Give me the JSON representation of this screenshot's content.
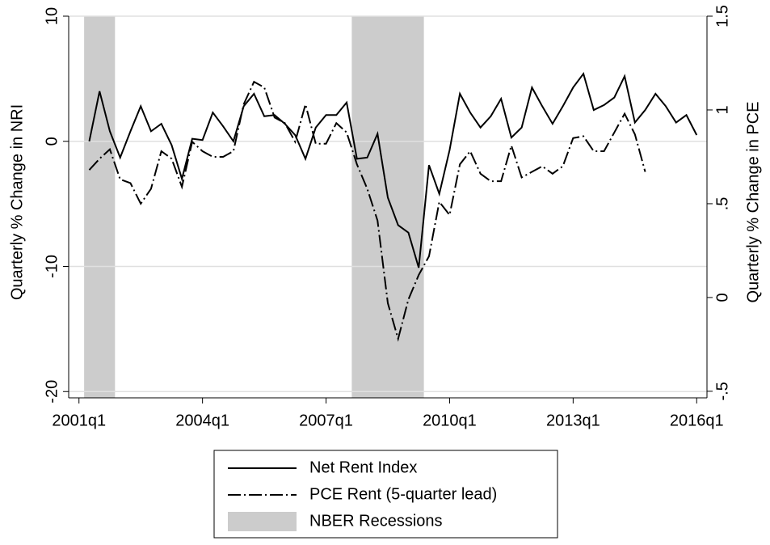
{
  "chart_data": {
    "type": "line",
    "x": [
      "2001q2",
      "2001q3",
      "2001q4",
      "2002q1",
      "2002q2",
      "2002q3",
      "2002q4",
      "2003q1",
      "2003q2",
      "2003q3",
      "2003q4",
      "2004q1",
      "2004q2",
      "2004q3",
      "2004q4",
      "2005q1",
      "2005q2",
      "2005q3",
      "2005q4",
      "2006q1",
      "2006q2",
      "2006q3",
      "2006q4",
      "2007q1",
      "2007q2",
      "2007q3",
      "2007q4",
      "2008q1",
      "2008q2",
      "2008q3",
      "2008q4",
      "2009q1",
      "2009q2",
      "2009q3",
      "2009q4",
      "2010q1",
      "2010q2",
      "2010q3",
      "2010q4",
      "2011q1",
      "2011q2",
      "2011q3",
      "2011q4",
      "2012q1",
      "2012q2",
      "2012q3",
      "2012q4",
      "2013q1",
      "2013q2",
      "2013q3",
      "2013q4",
      "2014q1",
      "2014q2",
      "2014q3",
      "2014q4",
      "2015q1",
      "2015q2",
      "2015q3",
      "2015q4",
      "2016q1"
    ],
    "series": [
      {
        "name": "Net Rent Index",
        "color": "#000000",
        "axis": "y",
        "values": [
          0,
          4.0,
          0.8,
          -1.3,
          0.8,
          2.8,
          0.8,
          1.4,
          -0.3,
          -3.0,
          0.2,
          0.1,
          2.3,
          1.2,
          0,
          2.8,
          3.8,
          2.0,
          2.1,
          1.4,
          0.5,
          -1.4,
          1.1,
          2.1,
          2.1,
          3.1,
          -1.4,
          -1.3,
          0.6,
          -4.5,
          -6.7,
          -7.3,
          -10.1,
          -1.9,
          -4.2,
          -0.7,
          3.8,
          2.3,
          1.1,
          2.0,
          3.4,
          0.3,
          1.1,
          4.3,
          2.8,
          1.4,
          2.8,
          4.3,
          5.4,
          2.5,
          2.9,
          3.5,
          5.2,
          1.5,
          2.5,
          3.8,
          2.8,
          1.5,
          2.1,
          0.5
        ]
      },
      {
        "name": "PCE Rent (5-quarter lead)",
        "color": "#000000",
        "axis": "y2",
        "values": [
          0.68,
          0.74,
          0.79,
          0.63,
          0.61,
          0.5,
          0.58,
          0.78,
          0.74,
          0.59,
          0.83,
          0.78,
          0.75,
          0.75,
          0.78,
          1.03,
          1.15,
          1.12,
          0.96,
          0.93,
          0.83,
          1.03,
          0.82,
          0.82,
          0.93,
          0.88,
          0.71,
          0.58,
          0.41,
          -0.03,
          -0.22,
          -0.01,
          0.12,
          0.22,
          0.51,
          0.44,
          0.71,
          0.78,
          0.66,
          0.62,
          0.62,
          0.81,
          0.64,
          0.67,
          0.7,
          0.66,
          0.7,
          0.85,
          0.86,
          0.78,
          0.78,
          0.88,
          0.98,
          0.87,
          0.67,
          null,
          null,
          null,
          null,
          null
        ]
      }
    ],
    "recessions": {
      "name": "NBER Recessions",
      "color": "#cccccc",
      "periods": [
        [
          "2001q2",
          "2001q4"
        ],
        [
          "2007q4",
          "2009q2"
        ]
      ]
    },
    "y_label": "Quarterly % Change in NRI",
    "y2_label": "Quarterly % Change in PCE",
    "xlim": [
      "2000q4",
      "2016q2"
    ],
    "xticks": [
      "2001q1",
      "2004q1",
      "2007q1",
      "2010q1",
      "2013q1",
      "2016q1"
    ],
    "ylim": [
      -20.5,
      10
    ],
    "yticks": [
      -20,
      -10,
      0,
      10
    ],
    "y2lim": [
      -0.535,
      1.5
    ],
    "y2ticks": [
      {
        "value": -0.5,
        "label": "-.5"
      },
      0,
      {
        "value": 0.5,
        "label": ".5"
      },
      1,
      1.5
    ],
    "grid": true
  }
}
